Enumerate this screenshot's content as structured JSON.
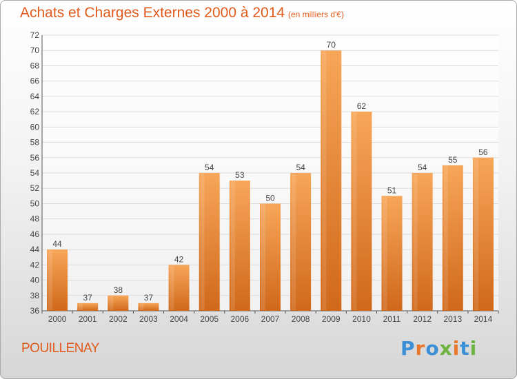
{
  "header": {
    "title": "Achats et Charges Externes 2000 à 2014",
    "subtitle": "(en milliers d'€)"
  },
  "footer": {
    "town": "POUILLENAY",
    "logo": "Proxiti"
  },
  "colors": {
    "accent": "#e05a1b",
    "bar_light": "#f7a659",
    "bar_dark": "#d96e1c"
  },
  "chart_data": {
    "type": "bar",
    "title": "Achats et Charges Externes 2000 à 2014",
    "subtitle": "(en milliers d'€)",
    "xlabel": "",
    "ylabel": "",
    "categories": [
      "2000",
      "2001",
      "2002",
      "2003",
      "2004",
      "2005",
      "2006",
      "2007",
      "2008",
      "2009",
      "2010",
      "2011",
      "2012",
      "2013",
      "2014"
    ],
    "values": [
      44,
      37,
      38,
      37,
      42,
      54,
      53,
      50,
      54,
      70,
      62,
      51,
      54,
      55,
      56
    ],
    "ylim": [
      36,
      72
    ],
    "yticks": [
      36,
      38,
      40,
      42,
      44,
      46,
      48,
      50,
      52,
      54,
      56,
      58,
      60,
      62,
      64,
      66,
      68,
      70,
      72
    ],
    "grid": true,
    "data_labels": true
  }
}
